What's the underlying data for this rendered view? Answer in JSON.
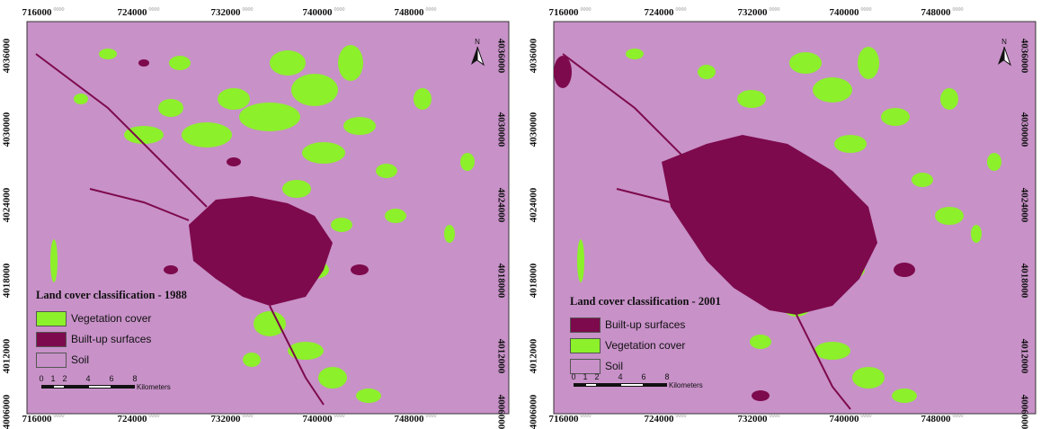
{
  "colors": {
    "soil": "#c891c8",
    "vegetation": "#8cf02a",
    "builtup": "#7d0a4c",
    "border": "#333333"
  },
  "panels": [
    {
      "id": "left",
      "year": "1988",
      "top_ticks": [
        "716000",
        "724000",
        "732000",
        "740000",
        "748000"
      ],
      "bottom_ticks": [
        "716000",
        "724000",
        "732000",
        "740000",
        "748000"
      ],
      "side_ticks": [
        "4036000",
        "4030000",
        "4024000",
        "4018000",
        "4012000",
        "4006000"
      ],
      "tick_superscript": "0000",
      "legend": {
        "title": "Land cover classification - 1988",
        "items": [
          {
            "label": "Vegetation cover",
            "color": "#8cf02a"
          },
          {
            "label": "Built-up surfaces",
            "color": "#7d0a4c"
          },
          {
            "label": "Soil",
            "color": "#c891c8"
          }
        ]
      },
      "scalebar": {
        "numbers": [
          "0",
          "1",
          "2",
          "4",
          "6",
          "8"
        ],
        "unit": "Kilometers"
      },
      "north_label": "N"
    },
    {
      "id": "right",
      "year": "2001",
      "top_ticks": [
        "716000",
        "724000",
        "732000",
        "740000",
        "748000"
      ],
      "bottom_ticks": [
        "716000",
        "724000",
        "732000",
        "740000",
        "748000"
      ],
      "side_ticks": [
        "4036000",
        "4030000",
        "4024000",
        "4018000",
        "4012000",
        "4006000"
      ],
      "tick_superscript": "0000",
      "legend": {
        "title": "Land cover classification - 2001",
        "items": [
          {
            "label": "Built-up surfaces",
            "color": "#7d0a4c"
          },
          {
            "label": "Vegetation cover",
            "color": "#8cf02a"
          },
          {
            "label": "Soil",
            "color": "#c891c8"
          }
        ]
      },
      "scalebar": {
        "numbers": [
          "0",
          "1",
          "2",
          "4",
          "6",
          "8"
        ],
        "unit": "Kilometers"
      },
      "north_label": "N"
    }
  ]
}
